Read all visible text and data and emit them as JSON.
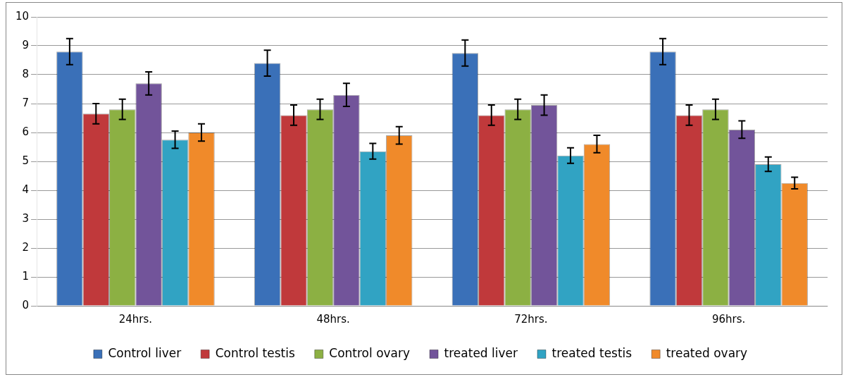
{
  "chart_data": {
    "type": "bar",
    "categories": [
      "24hrs.",
      "48hrs.",
      "72hrs.",
      "96hrs."
    ],
    "series": [
      {
        "name": "Control liver",
        "color": "#3a70b8",
        "values": [
          8.8,
          8.4,
          8.75,
          8.8
        ],
        "errors": [
          0.45,
          0.45,
          0.45,
          0.45
        ]
      },
      {
        "name": "Control testis",
        "color": "#c0393b",
        "values": [
          6.65,
          6.6,
          6.6,
          6.6
        ],
        "errors": [
          0.35,
          0.35,
          0.35,
          0.35
        ]
      },
      {
        "name": "Control ovary",
        "color": "#8cb043",
        "values": [
          6.8,
          6.8,
          6.8,
          6.8
        ],
        "errors": [
          0.35,
          0.35,
          0.35,
          0.35
        ]
      },
      {
        "name": "treated liver",
        "color": "#72549a",
        "values": [
          7.7,
          7.3,
          6.95,
          6.1
        ],
        "errors": [
          0.4,
          0.4,
          0.35,
          0.3
        ]
      },
      {
        "name": "treated testis",
        "color": "#31a3c3",
        "values": [
          5.75,
          5.35,
          5.2,
          4.9
        ],
        "errors": [
          0.3,
          0.27,
          0.27,
          0.25
        ]
      },
      {
        "name": "treated ovary",
        "color": "#f08a2a",
        "values": [
          6.0,
          5.9,
          5.6,
          4.25
        ],
        "errors": [
          0.3,
          0.3,
          0.3,
          0.2
        ]
      }
    ],
    "ylim": [
      0,
      10
    ],
    "yticks": [
      0,
      1,
      2,
      3,
      4,
      5,
      6,
      7,
      8,
      9,
      10
    ],
    "grid": "y",
    "legend": "bottom"
  }
}
